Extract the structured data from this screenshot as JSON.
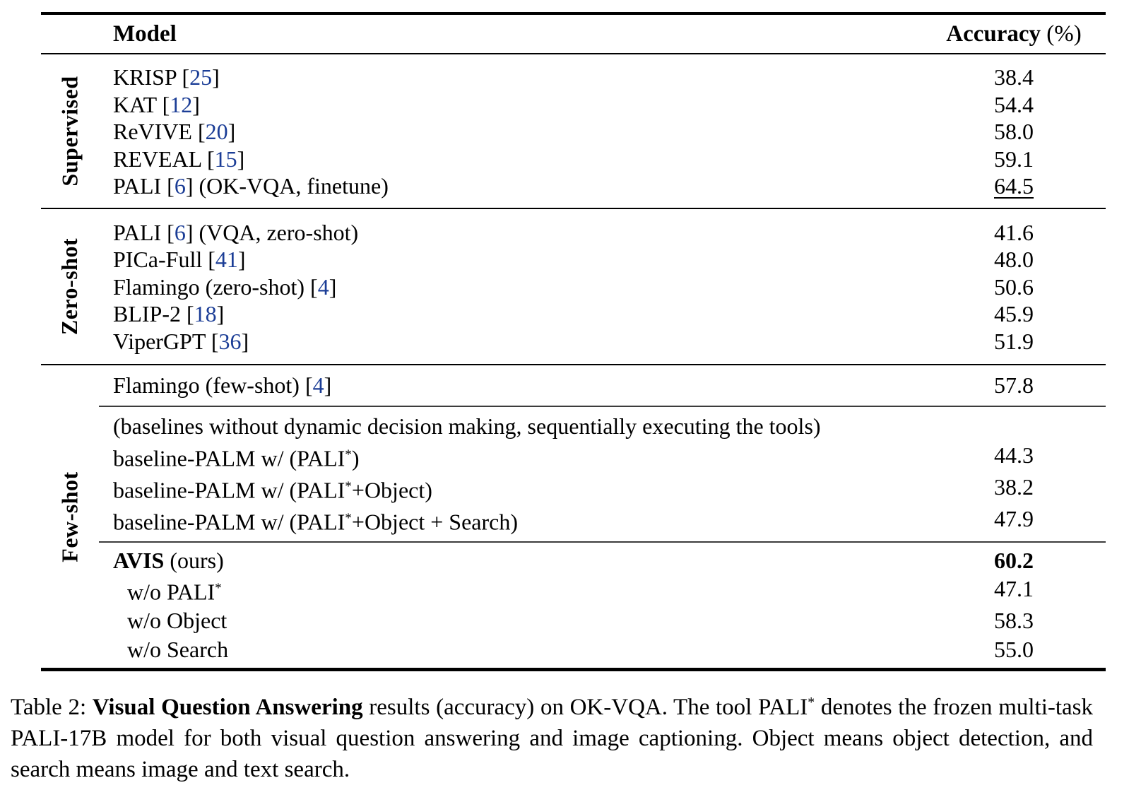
{
  "table": {
    "citation_color": "#1b3d96",
    "header": {
      "model": "Model",
      "accuracy_bold": "Accuracy",
      "accuracy_rest": " (%)"
    },
    "sections": [
      {
        "label": "Supervised",
        "groups": [
          {
            "rows": [
              {
                "model": [
                  {
                    "t": "KRISP ["
                  },
                  {
                    "t": "25",
                    "s": "cite"
                  },
                  {
                    "t": "]"
                  }
                ],
                "value": "38.4"
              },
              {
                "model": [
                  {
                    "t": "KAT ["
                  },
                  {
                    "t": "12",
                    "s": "cite"
                  },
                  {
                    "t": "]"
                  }
                ],
                "value": "54.4"
              },
              {
                "model": [
                  {
                    "t": "ReVIVE ["
                  },
                  {
                    "t": "20",
                    "s": "cite"
                  },
                  {
                    "t": "]"
                  }
                ],
                "value": "58.0"
              },
              {
                "model": [
                  {
                    "t": "REVEAL ["
                  },
                  {
                    "t": "15",
                    "s": "cite"
                  },
                  {
                    "t": "]"
                  }
                ],
                "value": "59.1"
              },
              {
                "model": [
                  {
                    "t": "PALI ["
                  },
                  {
                    "t": "6",
                    "s": "cite"
                  },
                  {
                    "t": "] (OK-VQA, finetune)"
                  }
                ],
                "value": "64.5",
                "value_style": "underline"
              }
            ]
          }
        ]
      },
      {
        "label": "Zero-shot",
        "groups": [
          {
            "rows": [
              {
                "model": [
                  {
                    "t": "PALI ["
                  },
                  {
                    "t": "6",
                    "s": "cite"
                  },
                  {
                    "t": "] (VQA, zero-shot)"
                  }
                ],
                "value": "41.6"
              },
              {
                "model": [
                  {
                    "t": "PICa-Full ["
                  },
                  {
                    "t": "41",
                    "s": "cite"
                  },
                  {
                    "t": "]"
                  }
                ],
                "value": "48.0"
              },
              {
                "model": [
                  {
                    "t": "Flamingo (zero-shot) ["
                  },
                  {
                    "t": "4",
                    "s": "cite"
                  },
                  {
                    "t": "]"
                  }
                ],
                "value": "50.6"
              },
              {
                "model": [
                  {
                    "t": "BLIP-2 ["
                  },
                  {
                    "t": "18",
                    "s": "cite"
                  },
                  {
                    "t": "]"
                  }
                ],
                "value": "45.9"
              },
              {
                "model": [
                  {
                    "t": "ViperGPT ["
                  },
                  {
                    "t": "36",
                    "s": "cite"
                  },
                  {
                    "t": "]"
                  }
                ],
                "value": "51.9"
              }
            ]
          }
        ]
      },
      {
        "label": "Few-shot",
        "groups": [
          {
            "rows": [
              {
                "model": [
                  {
                    "t": "Flamingo (few-shot) ["
                  },
                  {
                    "t": "4",
                    "s": "cite"
                  },
                  {
                    "t": "]"
                  }
                ],
                "value": "57.8"
              }
            ]
          },
          {
            "rows": [
              {
                "model": [
                  {
                    "t": "(baselines without dynamic decision making, sequentially executing the tools)"
                  }
                ],
                "value": ""
              },
              {
                "model": [
                  {
                    "t": "baseline-PALM w/ (PALI"
                  },
                  {
                    "t": "*",
                    "s": "sup"
                  },
                  {
                    "t": ")"
                  }
                ],
                "value": "44.3"
              },
              {
                "model": [
                  {
                    "t": "baseline-PALM w/ (PALI"
                  },
                  {
                    "t": "*",
                    "s": "sup"
                  },
                  {
                    "t": "+Object)"
                  }
                ],
                "value": "38.2"
              },
              {
                "model": [
                  {
                    "t": "baseline-PALM w/ (PALI"
                  },
                  {
                    "t": "*",
                    "s": "sup"
                  },
                  {
                    "t": "+Object + Search)"
                  }
                ],
                "value": "47.9"
              }
            ]
          },
          {
            "rows": [
              {
                "model": [
                  {
                    "t": "AVIS",
                    "s": "bold"
                  },
                  {
                    "t": " (ours)"
                  }
                ],
                "value": "60.2",
                "value_style": "bold"
              },
              {
                "model": [
                  {
                    "t": "w/o PALI"
                  },
                  {
                    "t": "*",
                    "s": "sup"
                  }
                ],
                "value": "47.1",
                "indent": true
              },
              {
                "model": [
                  {
                    "t": "w/o Object"
                  }
                ],
                "value": "58.3",
                "indent": true
              },
              {
                "model": [
                  {
                    "t": "w/o Search"
                  }
                ],
                "value": "55.0",
                "indent": true
              }
            ]
          }
        ]
      }
    ]
  },
  "caption": {
    "segments": [
      {
        "t": "Table 2: "
      },
      {
        "t": "Visual Question Answering",
        "s": "bold"
      },
      {
        "t": " results (accuracy) on OK-VQA. The tool PALI"
      },
      {
        "t": "*",
        "s": "sup"
      },
      {
        "t": " denotes the frozen multi-task PALI-17B model for both visual question answering and image captioning. Object means object detection, and search means image and text search."
      }
    ]
  }
}
